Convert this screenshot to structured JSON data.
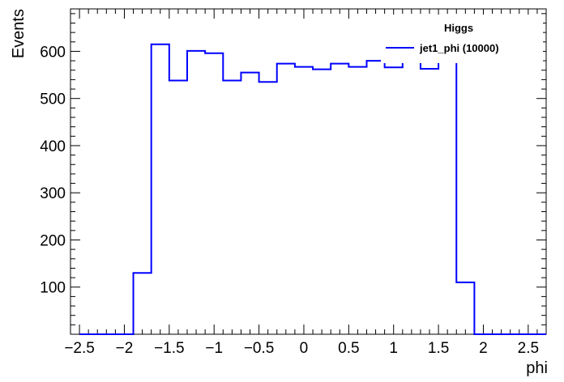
{
  "chart_data": {
    "type": "histogram",
    "xlabel": "phi",
    "ylabel": "Events",
    "xlim": [
      -2.6,
      2.7
    ],
    "ylim": [
      0,
      690
    ],
    "bin_edges": [
      -2.5,
      -2.3,
      -2.1,
      -1.9,
      -1.7,
      -1.5,
      -1.3,
      -1.1,
      -0.9,
      -0.7,
      -0.5,
      -0.3,
      -0.1,
      0.1,
      0.3,
      0.5,
      0.7,
      0.9,
      1.1,
      1.3,
      1.5,
      1.7,
      1.9,
      2.1,
      2.3,
      2.5,
      2.7
    ],
    "series": [
      {
        "name": "jet1_phi (10000)",
        "color": "#0000ff",
        "values": [
          0,
          0,
          0,
          130,
          615,
          538,
          601,
          596,
          538,
          555,
          535,
          574,
          567,
          562,
          574,
          567,
          580,
          566,
          590,
          563,
          588,
          110,
          0,
          0,
          0,
          0
        ]
      }
    ],
    "x_ticks": [
      -2.5,
      -2,
      -1.5,
      -1,
      -0.5,
      0,
      0.5,
      1,
      1.5,
      2,
      2.5
    ],
    "x_tick_labels": [
      "−2.5",
      "−2",
      "−1.5",
      "−1",
      "−0.5",
      "0",
      "0.5",
      "1",
      "1.5",
      "2",
      "2.5"
    ],
    "y_ticks": [
      100,
      200,
      300,
      400,
      500,
      600
    ],
    "y_tick_labels": [
      "100",
      "200",
      "300",
      "400",
      "500",
      "600"
    ],
    "legend": {
      "title": "Higgs",
      "entries": [
        "jet1_phi (10000)"
      ],
      "placement": "top-right"
    },
    "grid": false
  }
}
